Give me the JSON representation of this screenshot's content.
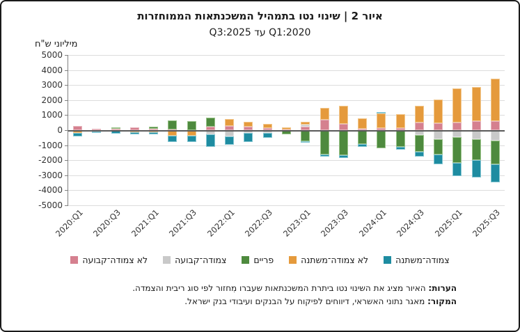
{
  "chart_data": {
    "type": "bar",
    "stacked": true,
    "title": "איור 2 | שינוי נטו בתמהיל המשכנתאות הממוחזרות",
    "subtitle": "2020:Q1 עד 2025:Q3",
    "unit_label": "מיליוני ש\"ח",
    "xlabel": "",
    "ylabel": "מיליוני ש\"ח",
    "ylim": [
      -5000,
      5000
    ],
    "y_step": 1000,
    "grid": true,
    "legend_position": "bottom",
    "categories": [
      "2020:Q1",
      "2020:Q2",
      "2020:Q3",
      "2020:Q4",
      "2021:Q1",
      "2021:Q2",
      "2021:Q3",
      "2021:Q4",
      "2022:Q1",
      "2022:Q2",
      "2022:Q3",
      "2022:Q4",
      "2023:Q1",
      "2023:Q2",
      "2023:Q3",
      "2023:Q4",
      "2024:Q1",
      "2024:Q2",
      "2024:Q3",
      "2024:Q4",
      "2025:Q1",
      "2025:Q2",
      "2025:Q3"
    ],
    "x_tick_labels": [
      "2020:Q1",
      "2020:Q3",
      "2021:Q1",
      "2021:Q3",
      "2022:Q1",
      "2022:Q3",
      "2023:Q1",
      "2023:Q3",
      "2024:Q1",
      "2024:Q3",
      "2025:Q1",
      "2025:Q3"
    ],
    "series": [
      {
        "name": "לא צמודה־קבועה",
        "color": "#d5808f",
        "border_color": "#e7b6be",
        "values": [
          270,
          110,
          80,
          170,
          110,
          40,
          0,
          230,
          260,
          230,
          140,
          40,
          240,
          710,
          410,
          80,
          150,
          150,
          500,
          450,
          530,
          610,
          610
        ]
      },
      {
        "name": "צמודה־קבועה",
        "color": "#c9c9c9",
        "border_color": "#e2e2e2",
        "values": [
          0,
          0,
          0,
          0,
          0,
          0,
          0,
          -260,
          -410,
          -200,
          -180,
          0,
          110,
          0,
          0,
          0,
          0,
          0,
          -330,
          -610,
          -480,
          -580,
          -680
        ]
      },
      {
        "name": "פריים",
        "color": "#4e8a3e",
        "border_color": "#9bc48b",
        "values": [
          0,
          -80,
          120,
          0,
          120,
          600,
          580,
          610,
          0,
          0,
          0,
          -290,
          -730,
          -1640,
          -1680,
          -910,
          -1200,
          -1110,
          -1120,
          -990,
          -1710,
          -1390,
          -1590
        ]
      },
      {
        "name": "לא צמודה־משתנה",
        "color": "#e59a3c",
        "border_color": "#f2c88e",
        "values": [
          -170,
          0,
          -50,
          -120,
          -150,
          -380,
          -350,
          0,
          500,
          330,
          290,
          160,
          200,
          760,
          1230,
          710,
          950,
          910,
          1120,
          1590,
          2240,
          2260,
          2800
        ]
      },
      {
        "name": "צמודה־משתנה",
        "color": "#1e8ca1",
        "border_color": "#85c6d2",
        "values": [
          -260,
          -70,
          -180,
          -180,
          -150,
          -390,
          -450,
          -830,
          -580,
          -570,
          -350,
          0,
          -100,
          -140,
          -180,
          -180,
          100,
          -180,
          -290,
          -650,
          -880,
          -1180,
          -1210
        ]
      }
    ]
  },
  "notes": {
    "line1_prefix": "הערות:",
    "line1_text": " האיור מציג את השינוי נטו ביתרת המשכנתאות שעברו מִחזור לפי סוג ריבית והצמדה.",
    "line2_prefix": "המקור:",
    "line2_text": " מאגר נתוני האשראי, דיווחים לפיקוח על הבנקים ועיבודי בנק ישראל."
  }
}
